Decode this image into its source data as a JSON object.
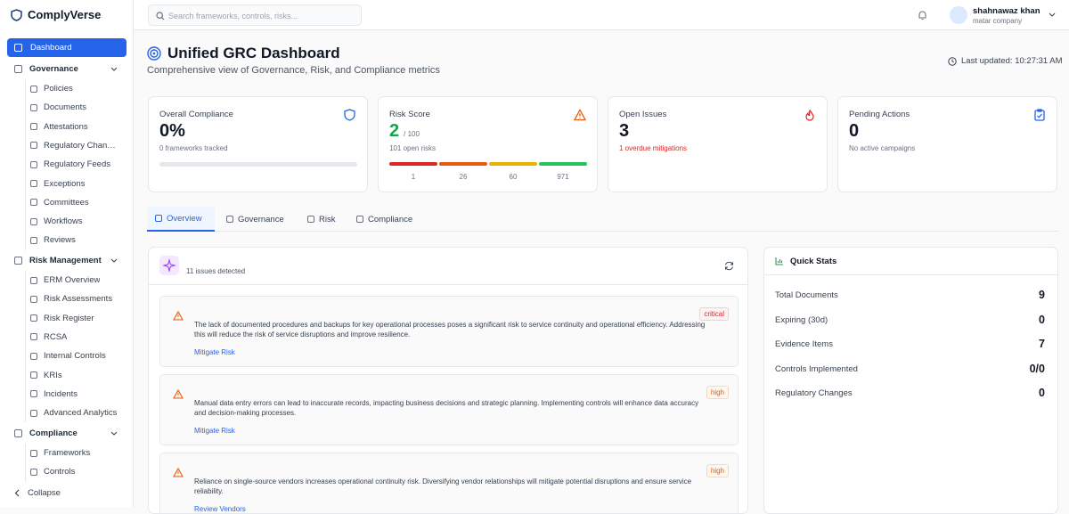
{
  "sidebar": {
    "brand": "ComplyVerse",
    "dashboard": "Dashboard",
    "groups": [
      {
        "title": "Governance",
        "items": [
          "Policies",
          "Documents",
          "Attestations",
          "Regulatory Changes",
          "Regulatory Feeds",
          "Exceptions",
          "Committees",
          "Workflows",
          "Reviews"
        ]
      },
      {
        "title": "Risk Management",
        "items": [
          "ERM Overview",
          "Risk Assessments",
          "Risk Register",
          "RCSA",
          "Internal Controls",
          "KRIs",
          "Incidents",
          "Advanced Analytics"
        ]
      },
      {
        "title": "Compliance",
        "items": [
          "Frameworks",
          "Controls"
        ]
      }
    ],
    "collapse": "Collapse"
  },
  "header": {
    "search_placeholder": "Search frameworks, controls, risks...",
    "user_name": "shahnawaz khan",
    "user_org": "matar company"
  },
  "page": {
    "title": "Unified GRC Dashboard",
    "subtitle": "Comprehensive view of Governance, Risk, and Compliance metrics",
    "last_updated": "Last updated: 10:27:31 AM"
  },
  "cards": [
    {
      "label": "Overall Compliance",
      "value": "0%",
      "note": "0 frameworks tracked"
    },
    {
      "label": "Risk Score",
      "value": "2",
      "suffix": "/ 100",
      "note": "101 open risks",
      "levels": [
        "1",
        "26",
        "60",
        "971"
      ]
    },
    {
      "label": "Open Issues",
      "value": "3",
      "note": "1 overdue mitigations"
    },
    {
      "label": "Pending Actions",
      "value": "0",
      "note": "No active campaigns"
    }
  ],
  "tabs": [
    "Overview",
    "Governance",
    "Risk",
    "Compliance"
  ],
  "issues": {
    "summary": "11 issues detected",
    "items": [
      {
        "severity": "critical",
        "text": "The lack of documented procedures and backups for key operational processes poses a significant risk to service continuity and operational efficiency. Addressing this will reduce the risk of service disruptions and improve resilience.",
        "action": "Mitigate Risk"
      },
      {
        "severity": "high",
        "text": "Manual data entry errors can lead to inaccurate records, impacting business decisions and strategic planning. Implementing controls will enhance data accuracy and decision-making processes.",
        "action": "Mitigate Risk"
      },
      {
        "severity": "high",
        "text": "Reliance on single-source vendors increases operational continuity risk. Diversifying vendor relationships will mitigate potential disruptions and ensure service reliability.",
        "action": "Review Vendors"
      }
    ]
  },
  "quick_stats": {
    "title": "Quick Stats",
    "rows": [
      {
        "label": "Total Documents",
        "value": "9"
      },
      {
        "label": "Expiring (30d)",
        "value": "0"
      },
      {
        "label": "Evidence Items",
        "value": "7"
      },
      {
        "label": "Controls Implemented",
        "value": "0/0"
      },
      {
        "label": "Regulatory Changes",
        "value": "0"
      }
    ]
  }
}
